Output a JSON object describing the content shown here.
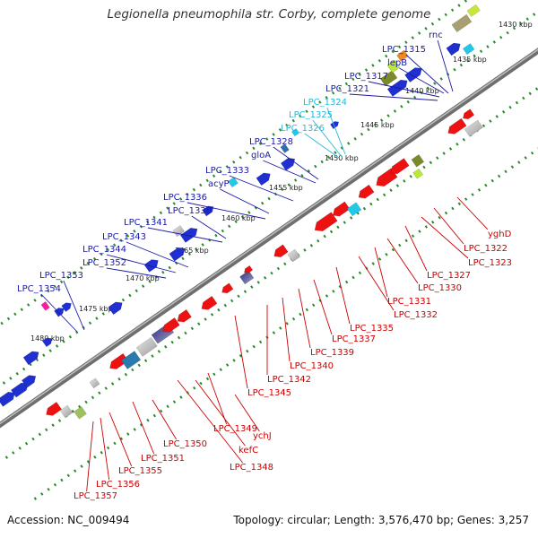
{
  "title": "Legionella pneumophila str. Corby, complete genome",
  "footer": {
    "accession": "Accession: NC_009494",
    "info": "Topology: circular; Length: 3,576,470 bp; Genes: 3,257"
  },
  "colors": {
    "forward_label": "#1a1aa6",
    "forward_label_alt": "#28b8d8",
    "reverse_label": "#cc0000",
    "backbone": "#888888",
    "tick_dots": "#2a8a2a"
  },
  "ticks": [
    "1430 kbp",
    "1435 kbp",
    "1440 kbp",
    "1445 kbp",
    "1450 kbp",
    "1455 kbp",
    "1460 kbp",
    "1465 kbp",
    "1470 kbp",
    "1475 kbp",
    "1480 kbp"
  ],
  "forward_genes": [
    "rnc",
    "LPC_1315",
    "lepB",
    "LPC_1317",
    "LPC_1321",
    "LPC_1324",
    "LPC_1325",
    "LPC_1326",
    "LPC_1328",
    "gloA",
    "LPC_1333",
    "acyP",
    "LPC_1336",
    "LPC_1338",
    "LPC_1341",
    "LPC_1343",
    "LPC_1344",
    "LPC_1352",
    "LPC_1353",
    "LPC_1354"
  ],
  "reverse_genes": [
    "yghD",
    "LPC_1322",
    "LPC_1323",
    "LPC_1327",
    "LPC_1330",
    "LPC_1331",
    "LPC_1332",
    "LPC_1335",
    "LPC_1337",
    "LPC_1339",
    "LPC_1340",
    "LPC_1342",
    "LPC_1345",
    "ychJ",
    "LPC_1349",
    "kefC",
    "LPC_1348",
    "LPC_1350",
    "LPC_1351",
    "LPC_1355",
    "LPC_1356",
    "LPC_1357"
  ]
}
